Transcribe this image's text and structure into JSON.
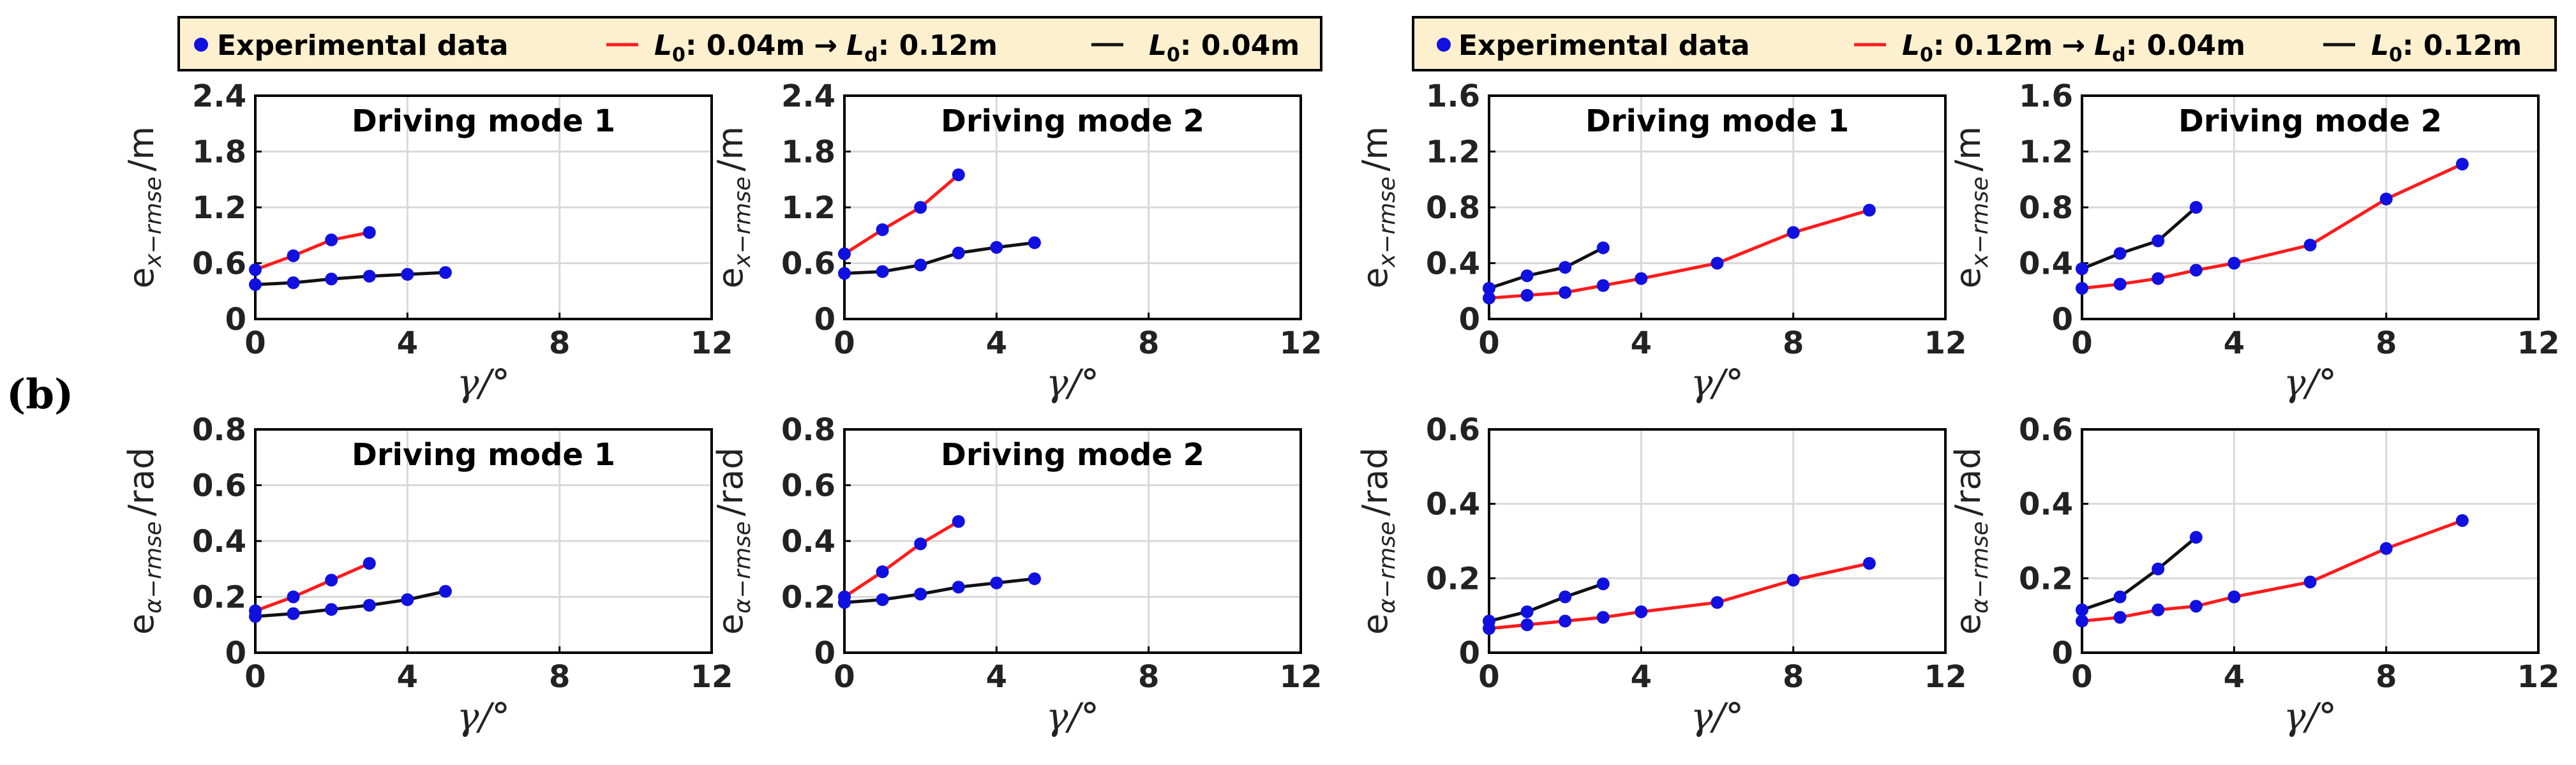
{
  "figure": {
    "panel_label": "(b)",
    "legend_left": {
      "dot_label": "Experimental data",
      "red_l0": "L",
      "red_l0_sub": "0",
      "red_l0_value": ": 0.04m",
      "arrow": "→",
      "red_ld": "L",
      "red_ld_sub": "d",
      "red_ld_value": ": 0.12m",
      "black_l0": "L",
      "black_l0_sub": "0",
      "black_l0_value": ": 0.04m"
    },
    "legend_right": {
      "dot_label": "Experimental data",
      "red_l0": "L",
      "red_l0_sub": "0",
      "red_l0_value": ": 0.12m",
      "arrow": "→",
      "red_ld": "L",
      "red_ld_sub": "d",
      "red_ld_value": ": 0.04m",
      "black_l0": "L",
      "black_l0_sub": "0",
      "black_l0_value": ": 0.12m"
    },
    "colors": {
      "red": "#ff1a1a",
      "black": "#111111",
      "point": "#1010e0",
      "legend_bg": "#fdf0cf",
      "grid": "#d9d9d9"
    }
  },
  "chart_data": [
    {
      "type": "line",
      "title": "Driving mode 1",
      "xlabel": "γ/°",
      "ylabel": "e",
      "ylabel_sub": "x−rmse",
      "ylabel_unit": "/m",
      "xlim": [
        0,
        12
      ],
      "ylim": [
        0,
        2.4
      ],
      "xticks": [
        0,
        4,
        8,
        12
      ],
      "yticks": [
        0,
        0.6,
        1.2,
        1.8,
        2.4
      ],
      "ytick_labels": [
        "0",
        "0.6",
        "1.2",
        "1.8",
        "2.4"
      ],
      "series": [
        {
          "name": "L0: 0.04m → Ld: 0.12m",
          "color": "red",
          "x": [
            0,
            1,
            2,
            3
          ],
          "y": [
            0.53,
            0.68,
            0.85,
            0.93
          ]
        },
        {
          "name": "L0: 0.04m",
          "color": "black",
          "x": [
            0,
            1,
            2,
            3,
            4,
            5
          ],
          "y": [
            0.37,
            0.39,
            0.43,
            0.46,
            0.48,
            0.5
          ]
        }
      ]
    },
    {
      "type": "line",
      "title": "Driving mode 2",
      "xlabel": "γ/°",
      "ylabel": "e",
      "ylabel_sub": "x−rmse",
      "ylabel_unit": "/m",
      "xlim": [
        0,
        12
      ],
      "ylim": [
        0,
        2.4
      ],
      "xticks": [
        0,
        4,
        8,
        12
      ],
      "yticks": [
        0,
        0.6,
        1.2,
        1.8,
        2.4
      ],
      "ytick_labels": [
        "0",
        "0.6",
        "1.2",
        "1.8",
        "2.4"
      ],
      "series": [
        {
          "name": "L0: 0.04m → Ld: 0.12m",
          "color": "red",
          "x": [
            0,
            1,
            2,
            3
          ],
          "y": [
            0.7,
            0.96,
            1.2,
            1.55
          ]
        },
        {
          "name": "L0: 0.04m",
          "color": "black",
          "x": [
            0,
            1,
            2,
            3,
            4,
            5
          ],
          "y": [
            0.49,
            0.51,
            0.58,
            0.71,
            0.77,
            0.82
          ]
        }
      ]
    },
    {
      "type": "line",
      "title": "Driving mode 1",
      "xlabel": "γ/°",
      "ylabel": "e",
      "ylabel_sub": "x−rmse",
      "ylabel_unit": "/m",
      "xlim": [
        0,
        12
      ],
      "ylim": [
        0,
        1.6
      ],
      "xticks": [
        0,
        4,
        8,
        12
      ],
      "yticks": [
        0,
        0.4,
        0.8,
        1.2,
        1.6
      ],
      "ytick_labels": [
        "0",
        "0.4",
        "0.8",
        "1.2",
        "1.6"
      ],
      "series": [
        {
          "name": "L0: 0.12m → Ld: 0.04m",
          "color": "red",
          "x": [
            0,
            1,
            2,
            3,
            4,
            6,
            8,
            10
          ],
          "y": [
            0.15,
            0.17,
            0.19,
            0.24,
            0.29,
            0.4,
            0.62,
            0.78
          ]
        },
        {
          "name": "L0: 0.12m",
          "color": "black",
          "x": [
            0,
            1,
            2,
            3
          ],
          "y": [
            0.22,
            0.31,
            0.37,
            0.51
          ]
        }
      ]
    },
    {
      "type": "line",
      "title": "Driving mode 2",
      "xlabel": "γ/°",
      "ylabel": "e",
      "ylabel_sub": "x−rmse",
      "ylabel_unit": "/m",
      "xlim": [
        0,
        12
      ],
      "ylim": [
        0,
        1.6
      ],
      "xticks": [
        0,
        4,
        8,
        12
      ],
      "yticks": [
        0,
        0.4,
        0.8,
        1.2,
        1.6
      ],
      "ytick_labels": [
        "0",
        "0.4",
        "0.8",
        "1.2",
        "1.6"
      ],
      "series": [
        {
          "name": "L0: 0.12m → Ld: 0.04m",
          "color": "red",
          "x": [
            0,
            1,
            2,
            3,
            4,
            6,
            8,
            10
          ],
          "y": [
            0.22,
            0.25,
            0.29,
            0.35,
            0.4,
            0.53,
            0.86,
            1.11
          ]
        },
        {
          "name": "L0: 0.12m",
          "color": "black",
          "x": [
            0,
            1,
            2,
            3
          ],
          "y": [
            0.36,
            0.47,
            0.56,
            0.8
          ]
        }
      ]
    },
    {
      "type": "line",
      "title": "Driving mode 1",
      "xlabel": "γ/°",
      "ylabel": "e",
      "ylabel_sub": "α−rmse",
      "ylabel_unit": "/rad",
      "xlim": [
        0,
        12
      ],
      "ylim": [
        0,
        0.8
      ],
      "xticks": [
        0,
        4,
        8,
        12
      ],
      "yticks": [
        0,
        0.2,
        0.4,
        0.6,
        0.8
      ],
      "ytick_labels": [
        "0",
        "0.2",
        "0.4",
        "0.6",
        "0.8"
      ],
      "series": [
        {
          "name": "L0: 0.04m → Ld: 0.12m",
          "color": "red",
          "x": [
            0,
            1,
            2,
            3
          ],
          "y": [
            0.15,
            0.2,
            0.26,
            0.32
          ]
        },
        {
          "name": "L0: 0.04m",
          "color": "black",
          "x": [
            0,
            1,
            2,
            3,
            4,
            5
          ],
          "y": [
            0.13,
            0.14,
            0.155,
            0.17,
            0.19,
            0.22
          ]
        }
      ]
    },
    {
      "type": "line",
      "title": "Driving mode 2",
      "xlabel": "γ/°",
      "ylabel": "e",
      "ylabel_sub": "α−rmse",
      "ylabel_unit": "/rad",
      "xlim": [
        0,
        12
      ],
      "ylim": [
        0,
        0.8
      ],
      "xticks": [
        0,
        4,
        8,
        12
      ],
      "yticks": [
        0,
        0.2,
        0.4,
        0.6,
        0.8
      ],
      "ytick_labels": [
        "0",
        "0.2",
        "0.4",
        "0.6",
        "0.8"
      ],
      "series": [
        {
          "name": "L0: 0.04m → Ld: 0.12m",
          "color": "red",
          "x": [
            0,
            1,
            2,
            3
          ],
          "y": [
            0.2,
            0.29,
            0.39,
            0.47
          ]
        },
        {
          "name": "L0: 0.04m",
          "color": "black",
          "x": [
            0,
            1,
            2,
            3,
            4,
            5
          ],
          "y": [
            0.18,
            0.19,
            0.21,
            0.235,
            0.25,
            0.265
          ]
        }
      ]
    },
    {
      "type": "line",
      "title": "",
      "xlabel": "γ/°",
      "ylabel": "e",
      "ylabel_sub": "α−rmse",
      "ylabel_unit": "/rad",
      "xlim": [
        0,
        12
      ],
      "ylim": [
        0,
        0.6
      ],
      "xticks": [
        0,
        4,
        8,
        12
      ],
      "yticks": [
        0,
        0.2,
        0.4,
        0.6
      ],
      "ytick_labels": [
        "0",
        "0.2",
        "0.4",
        "0.6"
      ],
      "series": [
        {
          "name": "L0: 0.12m → Ld: 0.04m",
          "color": "red",
          "x": [
            0,
            1,
            2,
            3,
            4,
            6,
            8,
            10
          ],
          "y": [
            0.065,
            0.075,
            0.085,
            0.095,
            0.11,
            0.135,
            0.195,
            0.24
          ]
        },
        {
          "name": "L0: 0.12m",
          "color": "black",
          "x": [
            0,
            1,
            2,
            3
          ],
          "y": [
            0.085,
            0.11,
            0.15,
            0.185
          ]
        }
      ]
    },
    {
      "type": "line",
      "title": "",
      "xlabel": "γ/°",
      "ylabel": "e",
      "ylabel_sub": "α−rmse",
      "ylabel_unit": "/rad",
      "xlim": [
        0,
        12
      ],
      "ylim": [
        0,
        0.6
      ],
      "xticks": [
        0,
        4,
        8,
        12
      ],
      "yticks": [
        0,
        0.2,
        0.4,
        0.6
      ],
      "ytick_labels": [
        "0",
        "0.2",
        "0.4",
        "0.6"
      ],
      "series": [
        {
          "name": "L0: 0.12m → Ld: 0.04m",
          "color": "red",
          "x": [
            0,
            1,
            2,
            3,
            4,
            6,
            8,
            10
          ],
          "y": [
            0.085,
            0.095,
            0.115,
            0.125,
            0.15,
            0.19,
            0.28,
            0.355
          ]
        },
        {
          "name": "L0: 0.12m",
          "color": "black",
          "x": [
            0,
            1,
            2,
            3
          ],
          "y": [
            0.115,
            0.15,
            0.225,
            0.31
          ]
        }
      ]
    }
  ]
}
